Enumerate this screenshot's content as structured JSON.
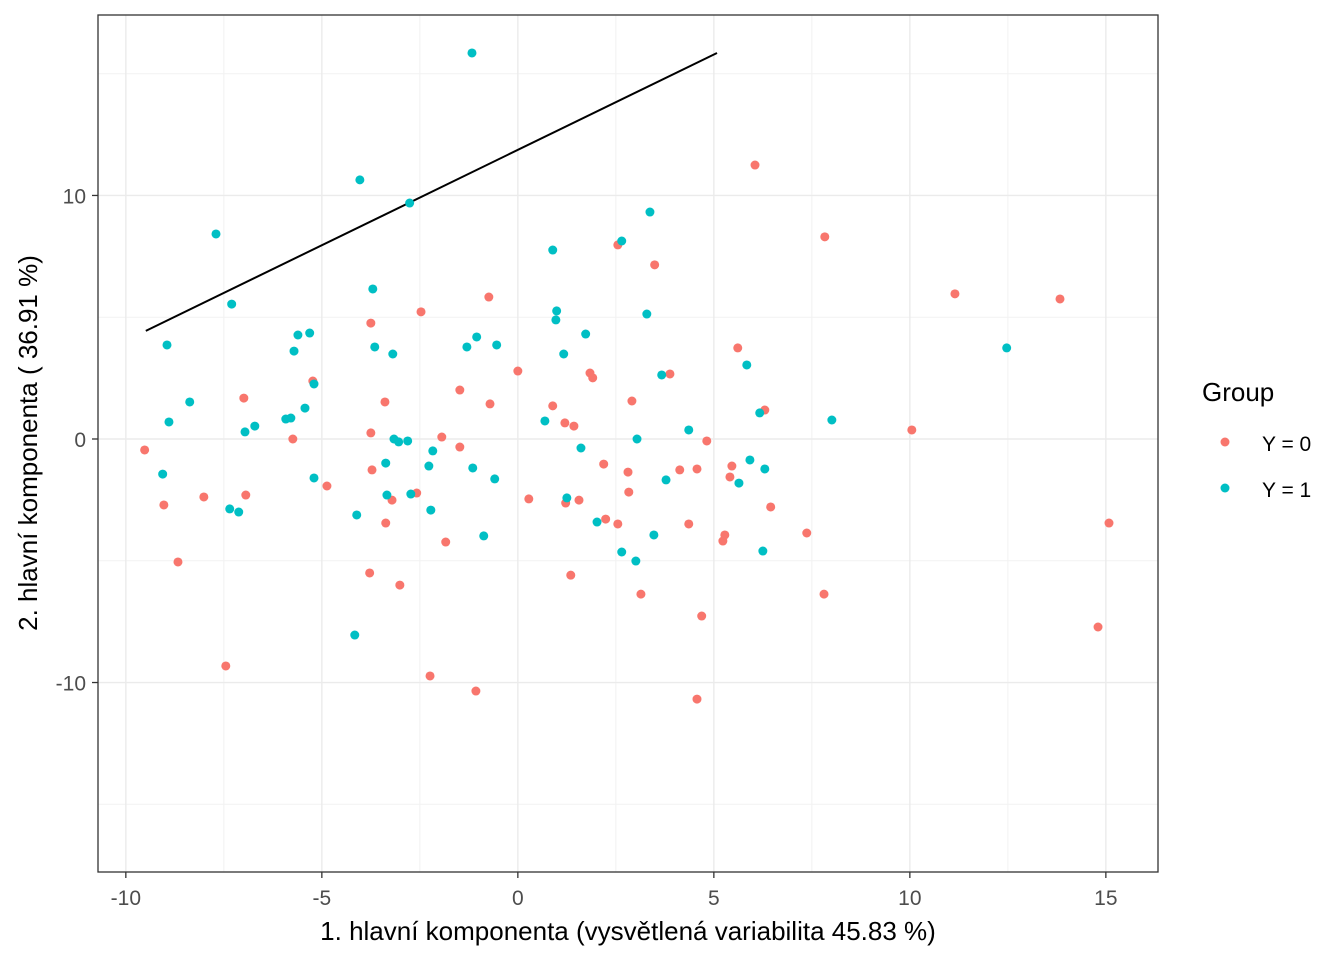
{
  "chart_data": {
    "type": "scatter",
    "title": "",
    "xlabel": "1. hlavní komponenta (vysvětlená variabilita 45.83 %)",
    "ylabel": "2. hlavní komponenta ( 36.91 %)",
    "xlim": [
      -10.71,
      16.33
    ],
    "ylim": [
      -17.78,
      17.41
    ],
    "x_ticks": [
      -10,
      -5,
      0,
      5,
      10,
      15
    ],
    "x_tick_labels": [
      "-10",
      "-5",
      "0",
      "5",
      "10",
      "15"
    ],
    "y_ticks": [
      -10,
      0,
      10
    ],
    "y_tick_labels": [
      "-10",
      "0",
      "10"
    ],
    "grid": true,
    "legend": {
      "title": "Group",
      "placement": "right",
      "entries": [
        "Y = 0",
        "Y = 1"
      ]
    },
    "colors": {
      "Y = 0": "#F8766D",
      "Y = 1": "#00BFC4",
      "line": "#000000"
    },
    "line_segment": {
      "x": [
        -9.49,
        5.08
      ],
      "y": [
        4.44,
        15.85
      ]
    },
    "series": [
      {
        "name": "Y = 0",
        "points": [
          [
            -9.52,
            -0.45
          ],
          [
            -9.03,
            -2.71
          ],
          [
            -8.67,
            -5.05
          ],
          [
            -8.01,
            -2.38
          ],
          [
            -7.45,
            -9.32
          ],
          [
            -6.99,
            1.68
          ],
          [
            -6.94,
            -2.3
          ],
          [
            -5.74,
            0
          ],
          [
            -5.23,
            2.38
          ],
          [
            -4.87,
            -1.93
          ],
          [
            -3.75,
            4.76
          ],
          [
            -3.75,
            0.25
          ],
          [
            -3.72,
            -1.27
          ],
          [
            -3.39,
            1.52
          ],
          [
            -3.37,
            -3.45
          ],
          [
            -3.21,
            -2.51
          ],
          [
            -3.01,
            -6.0
          ],
          [
            -3.78,
            -5.5
          ],
          [
            -2.58,
            -2.22
          ],
          [
            -2.47,
            5.22
          ],
          [
            -2.24,
            -9.73
          ],
          [
            -1.94,
            0.08
          ],
          [
            -1.84,
            -4.23
          ],
          [
            -1.48,
            2.01
          ],
          [
            -1.48,
            -0.33
          ],
          [
            -1.07,
            -10.35
          ],
          [
            -0.74,
            5.83
          ],
          [
            -0.71,
            1.44
          ],
          [
            0,
            2.79
          ],
          [
            0.28,
            -2.46
          ],
          [
            0.89,
            1.36
          ],
          [
            1.2,
            0.66
          ],
          [
            1.22,
            -2.63
          ],
          [
            1.35,
            -5.59
          ],
          [
            1.43,
            0.53
          ],
          [
            1.56,
            -2.51
          ],
          [
            1.84,
            2.71
          ],
          [
            1.91,
            2.51
          ],
          [
            2.19,
            -1.03
          ],
          [
            2.24,
            -3.29
          ],
          [
            2.55,
            -3.49
          ],
          [
            2.55,
            7.97
          ],
          [
            2.81,
            -1.36
          ],
          [
            2.83,
            -2.18
          ],
          [
            2.91,
            1.56
          ],
          [
            3.14,
            -6.37
          ],
          [
            3.49,
            7.15
          ],
          [
            3.88,
            2.67
          ],
          [
            4.13,
            -1.27
          ],
          [
            4.36,
            -3.49
          ],
          [
            4.57,
            -1.23
          ],
          [
            4.57,
            -10.68
          ],
          [
            4.69,
            -7.27
          ],
          [
            4.82,
            -0.08
          ],
          [
            5.23,
            -4.19
          ],
          [
            5.28,
            -3.94
          ],
          [
            5.41,
            -1.56
          ],
          [
            5.46,
            -1.11
          ],
          [
            5.61,
            3.74
          ],
          [
            6.3,
            1.19
          ],
          [
            6.45,
            -2.79
          ],
          [
            6.05,
            11.25
          ],
          [
            7.37,
            -3.86
          ],
          [
            7.83,
            8.3
          ],
          [
            7.81,
            -6.37
          ],
          [
            10.05,
            0.37
          ],
          [
            11.15,
            5.96
          ],
          [
            13.83,
            5.75
          ],
          [
            14.8,
            -7.72
          ],
          [
            15.08,
            -3.45
          ]
        ]
      },
      {
        "name": "Y = 1",
        "points": [
          [
            -9.06,
            -1.44
          ],
          [
            -8.95,
            3.86
          ],
          [
            -8.9,
            0.7
          ],
          [
            -8.37,
            1.52
          ],
          [
            -7.7,
            8.42
          ],
          [
            -7.35,
            -2.87
          ],
          [
            -7.3,
            5.54
          ],
          [
            -7.12,
            -3.0
          ],
          [
            -6.96,
            0.29
          ],
          [
            -6.71,
            0.53
          ],
          [
            -5.92,
            0.82
          ],
          [
            -5.79,
            0.86
          ],
          [
            -5.71,
            3.61
          ],
          [
            -5.61,
            4.27
          ],
          [
            -5.43,
            1.27
          ],
          [
            -5.31,
            4.35
          ],
          [
            -5.2,
            -1.6
          ],
          [
            -5.2,
            2.26
          ],
          [
            -4.11,
            -3.12
          ],
          [
            -4.16,
            -8.05
          ],
          [
            -4.03,
            10.64
          ],
          [
            -3.7,
            6.16
          ],
          [
            -3.65,
            3.78
          ],
          [
            -3.37,
            -0.99
          ],
          [
            -3.34,
            -2.3
          ],
          [
            -3.19,
            3.49
          ],
          [
            -3.16,
            0
          ],
          [
            -3.04,
            -0.12
          ],
          [
            -2.81,
            -0.08
          ],
          [
            -2.76,
            9.69
          ],
          [
            -2.73,
            -2.26
          ],
          [
            -2.27,
            -1.11
          ],
          [
            -2.22,
            -2.92
          ],
          [
            -2.17,
            -0.49
          ],
          [
            -1.3,
            3.78
          ],
          [
            -1.17,
            15.85
          ],
          [
            -1.15,
            -1.19
          ],
          [
            -1.05,
            4.19
          ],
          [
            -0.87,
            -3.98
          ],
          [
            -0.59,
            -1.64
          ],
          [
            -0.54,
            3.86
          ],
          [
            0.69,
            0.74
          ],
          [
            0.89,
            7.76
          ],
          [
            0.97,
            4.89
          ],
          [
            0.99,
            5.26
          ],
          [
            1.17,
            3.49
          ],
          [
            1.25,
            -2.42
          ],
          [
            1.61,
            -0.37
          ],
          [
            1.73,
            4.31
          ],
          [
            2.02,
            -3.41
          ],
          [
            2.65,
            -4.64
          ],
          [
            2.65,
            8.13
          ],
          [
            3.01,
            -5.01
          ],
          [
            3.04,
            0
          ],
          [
            3.29,
            5.13
          ],
          [
            3.37,
            9.32
          ],
          [
            3.47,
            -3.94
          ],
          [
            3.67,
            2.63
          ],
          [
            3.78,
            -1.68
          ],
          [
            4.36,
            0.37
          ],
          [
            5.84,
            3.04
          ],
          [
            5.92,
            -0.86
          ],
          [
            5.64,
            -1.81
          ],
          [
            6.17,
            1.07
          ],
          [
            6.25,
            -4.6
          ],
          [
            6.3,
            -1.23
          ],
          [
            8.01,
            0.78
          ],
          [
            12.47,
            3.74
          ]
        ]
      }
    ]
  }
}
